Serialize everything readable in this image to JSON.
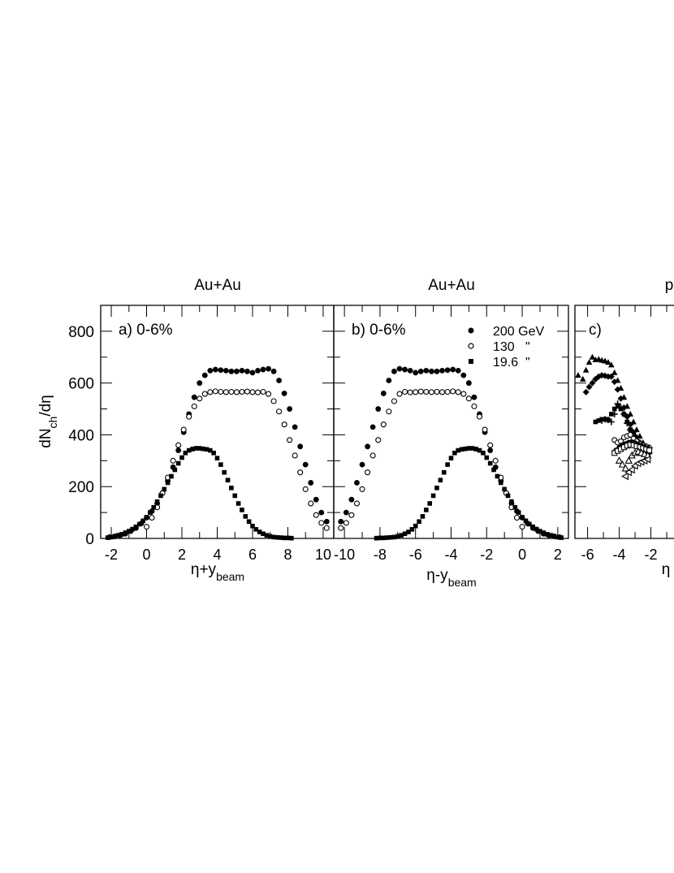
{
  "figure": {
    "ylabel": {
      "base": "dN",
      "sub": "ch",
      "tail": "/dη"
    }
  },
  "chart_data": [
    {
      "type": "scatter",
      "title": "Au+Au",
      "annotation": "a) 0-6%",
      "xlabel": {
        "base": "η+y",
        "sub": "beam"
      },
      "xlim": [
        -2.6,
        10.6
      ],
      "ylim": [
        0,
        900
      ],
      "xticks": [
        -2,
        0,
        2,
        4,
        6,
        8,
        10
      ],
      "yticks": [
        0,
        200,
        400,
        600,
        800
      ],
      "series": [
        {
          "marker": "filled-circle",
          "x": [
            -2.1,
            -1.8,
            -1.5,
            -1.2,
            -0.9,
            -0.6,
            -0.3,
            0,
            0.3,
            0.6,
            0.9,
            1.2,
            1.5,
            1.8,
            2.1,
            2.4,
            2.7,
            3,
            3.3,
            3.6,
            3.9,
            4.2,
            4.5,
            4.8,
            5.1,
            5.4,
            5.7,
            6,
            6.3,
            6.6,
            6.9,
            7.2,
            7.5,
            7.8,
            8.1,
            8.4,
            8.7,
            9,
            9.3,
            9.6,
            9.9,
            10.2
          ],
          "y": [
            5,
            8,
            12,
            18,
            28,
            40,
            58,
            80,
            105,
            135,
            175,
            222,
            275,
            340,
            410,
            480,
            545,
            600,
            630,
            648,
            652,
            650,
            648,
            645,
            645,
            648,
            645,
            640,
            648,
            652,
            655,
            645,
            610,
            560,
            500,
            430,
            355,
            285,
            215,
            150,
            100,
            65
          ]
        },
        {
          "marker": "open-circle",
          "x": [
            0,
            0.3,
            0.6,
            0.9,
            1.2,
            1.5,
            1.8,
            2.1,
            2.4,
            2.7,
            3,
            3.3,
            3.6,
            3.9,
            4.2,
            4.5,
            4.8,
            5.1,
            5.4,
            5.7,
            6,
            6.3,
            6.6,
            6.9,
            7.2,
            7.5,
            7.8,
            8.1,
            8.4,
            8.7,
            9,
            9.3,
            9.6,
            9.9,
            10.2
          ],
          "y": [
            45,
            80,
            120,
            175,
            235,
            300,
            360,
            420,
            470,
            510,
            540,
            558,
            565,
            568,
            566,
            565,
            566,
            565,
            566,
            567,
            565,
            564,
            566,
            558,
            530,
            490,
            440,
            380,
            320,
            255,
            190,
            135,
            90,
            60,
            40
          ]
        },
        {
          "marker": "filled-square",
          "x": [
            -2.2,
            -2,
            -1.8,
            -1.6,
            -1.4,
            -1.2,
            -1,
            -0.8,
            -0.6,
            -0.4,
            -0.2,
            0,
            0.2,
            0.4,
            0.6,
            0.8,
            1,
            1.2,
            1.4,
            1.6,
            1.8,
            2,
            2.2,
            2.4,
            2.6,
            2.8,
            3,
            3.2,
            3.4,
            3.6,
            3.8,
            4,
            4.2,
            4.4,
            4.6,
            4.8,
            5,
            5.2,
            5.4,
            5.6,
            5.8,
            6,
            6.2,
            6.4,
            6.6,
            6.8,
            7,
            7.2,
            7.4,
            7.6,
            7.8,
            8,
            8.2
          ],
          "y": [
            3,
            5,
            8,
            12,
            16,
            22,
            28,
            36,
            45,
            55,
            68,
            82,
            100,
            120,
            142,
            165,
            190,
            215,
            240,
            265,
            290,
            312,
            330,
            340,
            345,
            348,
            348,
            346,
            344,
            340,
            330,
            310,
            285,
            255,
            225,
            195,
            165,
            135,
            110,
            85,
            65,
            48,
            35,
            25,
            18,
            12,
            8,
            5,
            4,
            3,
            2,
            2,
            1
          ]
        }
      ]
    },
    {
      "type": "scatter",
      "title": "Au+Au",
      "annotation": "b) 0-6%",
      "xlabel": {
        "base": "η-y",
        "sub": "beam"
      },
      "xlim": [
        -10.6,
        2.6
      ],
      "ylim": [
        0,
        900
      ],
      "xticks": [
        -10,
        -8,
        -6,
        -4,
        -2,
        0,
        2
      ],
      "yticks": [
        0,
        200,
        400,
        600,
        800
      ],
      "legend": [
        {
          "marker": "filled-circle",
          "label": "200 GeV"
        },
        {
          "marker": "open-circle",
          "label": "130   \""
        },
        {
          "marker": "filled-square",
          "label": "19.6  \""
        }
      ],
      "series": [
        {
          "marker": "filled-circle",
          "x": [
            -10.2,
            -9.9,
            -9.6,
            -9.3,
            -9,
            -8.7,
            -8.4,
            -8.1,
            -7.8,
            -7.5,
            -7.2,
            -6.9,
            -6.6,
            -6.3,
            -6,
            -5.7,
            -5.4,
            -5.1,
            -4.8,
            -4.5,
            -4.2,
            -3.9,
            -3.6,
            -3.3,
            -3,
            -2.7,
            -2.4,
            -2.1,
            -1.8,
            -1.5,
            -1.2,
            -0.9,
            -0.6,
            -0.3,
            0,
            0.3,
            0.6,
            0.9,
            1.2,
            1.5,
            1.8,
            2.1
          ],
          "y": [
            65,
            100,
            150,
            215,
            285,
            355,
            430,
            500,
            560,
            610,
            645,
            655,
            652,
            648,
            640,
            645,
            648,
            645,
            645,
            648,
            650,
            652,
            648,
            630,
            600,
            545,
            480,
            410,
            340,
            275,
            222,
            175,
            135,
            105,
            80,
            58,
            40,
            28,
            18,
            12,
            8,
            5
          ]
        },
        {
          "marker": "open-circle",
          "x": [
            -10.2,
            -9.9,
            -9.6,
            -9.3,
            -9,
            -8.7,
            -8.4,
            -8.1,
            -7.8,
            -7.5,
            -7.2,
            -6.9,
            -6.6,
            -6.3,
            -6,
            -5.7,
            -5.4,
            -5.1,
            -4.8,
            -4.5,
            -4.2,
            -3.9,
            -3.6,
            -3.3,
            -3,
            -2.7,
            -2.4,
            -2.1,
            -1.8,
            -1.5,
            -1.2,
            -0.9,
            -0.6,
            -0.3,
            0
          ],
          "y": [
            40,
            60,
            90,
            135,
            190,
            255,
            320,
            380,
            440,
            490,
            530,
            558,
            566,
            564,
            565,
            567,
            566,
            565,
            566,
            565,
            566,
            568,
            565,
            558,
            540,
            510,
            470,
            420,
            360,
            300,
            235,
            175,
            120,
            80,
            45
          ]
        },
        {
          "marker": "filled-square",
          "x": [
            -8.2,
            -8,
            -7.8,
            -7.6,
            -7.4,
            -7.2,
            -7,
            -6.8,
            -6.6,
            -6.4,
            -6.2,
            -6,
            -5.8,
            -5.6,
            -5.4,
            -5.2,
            -5,
            -4.8,
            -4.6,
            -4.4,
            -4.2,
            -4,
            -3.8,
            -3.6,
            -3.4,
            -3.2,
            -3,
            -2.8,
            -2.6,
            -2.4,
            -2.2,
            -2,
            -1.8,
            -1.6,
            -1.4,
            -1.2,
            -1,
            -0.8,
            -0.6,
            -0.4,
            -0.2,
            0,
            0.2,
            0.4,
            0.6,
            0.8,
            1,
            1.2,
            1.4,
            1.6,
            1.8,
            2,
            2.2
          ],
          "y": [
            1,
            2,
            2,
            3,
            4,
            5,
            8,
            12,
            18,
            25,
            35,
            48,
            65,
            85,
            110,
            135,
            165,
            195,
            225,
            255,
            285,
            310,
            330,
            340,
            344,
            346,
            348,
            348,
            345,
            340,
            330,
            312,
            290,
            265,
            240,
            215,
            190,
            165,
            142,
            120,
            100,
            82,
            68,
            55,
            45,
            36,
            28,
            22,
            16,
            12,
            8,
            5,
            3
          ]
        }
      ]
    },
    {
      "type": "scatter",
      "title": "p",
      "annotation": "c)",
      "xlabel": {
        "base": "η",
        "sub": ""
      },
      "xlim": [
        -6.8,
        1.0
      ],
      "ylim": [
        0,
        900
      ],
      "xticks": [
        -6,
        -4,
        -2
      ],
      "yticks": [
        0,
        200,
        400,
        600,
        800
      ],
      "series": [
        {
          "marker": "filled-triangle",
          "x": [
            -6.6,
            -6.3,
            -6.1,
            -5.9,
            -5.7,
            -5.5,
            -5.3,
            -5.1,
            -4.9,
            -4.7,
            -4.5,
            -4.3,
            -4.1,
            -3.9,
            -3.7,
            -3.5,
            -3.3,
            -3.1,
            -2.9,
            -2.7,
            -2.5,
            -2.3,
            -2.1
          ],
          "y": [
            630,
            615,
            650,
            680,
            700,
            690,
            692,
            688,
            685,
            680,
            670,
            640,
            610,
            580,
            545,
            510,
            480,
            450,
            420,
            395,
            370,
            350,
            335
          ]
        },
        {
          "marker": "filled-diamond",
          "x": [
            -6.1,
            -5.9,
            -5.7,
            -5.5,
            -5.3,
            -5.1,
            -4.9,
            -4.7,
            -4.5,
            -4.3,
            -4.1,
            -3.9,
            -3.7,
            -3.5,
            -3.3,
            -3.1,
            -2.9,
            -2.7,
            -2.5,
            -2.3,
            -2.1
          ],
          "y": [
            565,
            585,
            600,
            615,
            625,
            630,
            628,
            625,
            625,
            605,
            575,
            540,
            505,
            470,
            440,
            410,
            390,
            370,
            355,
            340,
            330
          ]
        },
        {
          "marker": "filled-square",
          "x": [
            -5.5,
            -5.3,
            -5.1,
            -4.9,
            -4.7,
            -4.5,
            -4.3,
            -4.1,
            -3.9,
            -3.7,
            -3.5,
            -3.3,
            -3.1,
            -2.9,
            -2.7,
            -2.5,
            -2.3,
            -2.1
          ],
          "y": [
            450,
            455,
            460,
            460,
            458,
            480,
            500,
            510,
            500,
            480,
            450,
            420,
            400,
            380,
            365,
            350,
            345,
            340
          ]
        },
        {
          "marker": "plus",
          "x": [
            -5.1,
            -4.9,
            -4.7,
            -4.5,
            -4.3,
            -4.1,
            -3.9,
            -3.7,
            -3.5,
            -3.3,
            -3.1,
            -2.9,
            -2.7,
            -2.5,
            -2.3,
            -2.1
          ],
          "y": [
            455,
            460,
            458,
            450,
            480,
            520,
            505,
            480,
            445,
            420,
            400,
            380,
            370,
            360,
            355,
            350
          ]
        },
        {
          "marker": "open-circle",
          "x": [
            -4.3,
            -4.1,
            -3.9,
            -3.7,
            -3.5,
            -3.3,
            -3.1,
            -2.9,
            -2.7,
            -2.5,
            -2.3,
            -2.1
          ],
          "y": [
            380,
            370,
            375,
            390,
            395,
            400,
            385,
            375,
            365,
            360,
            355,
            350
          ]
        },
        {
          "marker": "filled-circle",
          "x": [
            -4.2,
            -4.0,
            -3.8,
            -3.6,
            -3.4,
            -3.2,
            -3.0,
            -2.8,
            -2.6,
            -2.4,
            -2.2
          ],
          "y": [
            340,
            350,
            360,
            365,
            370,
            372,
            368,
            362,
            358,
            352,
            348
          ]
        },
        {
          "marker": "open-square",
          "x": [
            -4.3,
            -4.1,
            -3.9,
            -3.7,
            -3.5,
            -3.3,
            -3.1,
            -2.9,
            -2.7,
            -2.5,
            -2.3,
            -2.1
          ],
          "y": [
            330,
            338,
            345,
            352,
            358,
            362,
            360,
            356,
            352,
            348,
            344,
            340
          ]
        },
        {
          "marker": "open-triangle",
          "x": [
            -4.0,
            -3.8,
            -3.6,
            -3.4,
            -3.2,
            -3.0,
            -2.8,
            -2.6,
            -2.4,
            -2.2
          ],
          "y": [
            300,
            285,
            270,
            300,
            320,
            330,
            335,
            330,
            325,
            320
          ]
        },
        {
          "marker": "open-left-triangle",
          "x": [
            -3.6,
            -3.4,
            -3.2,
            -3.0,
            -2.8,
            -2.6,
            -2.4,
            -2.2
          ],
          "y": [
            240,
            255,
            265,
            280,
            290,
            295,
            300,
            305
          ]
        }
      ]
    }
  ]
}
